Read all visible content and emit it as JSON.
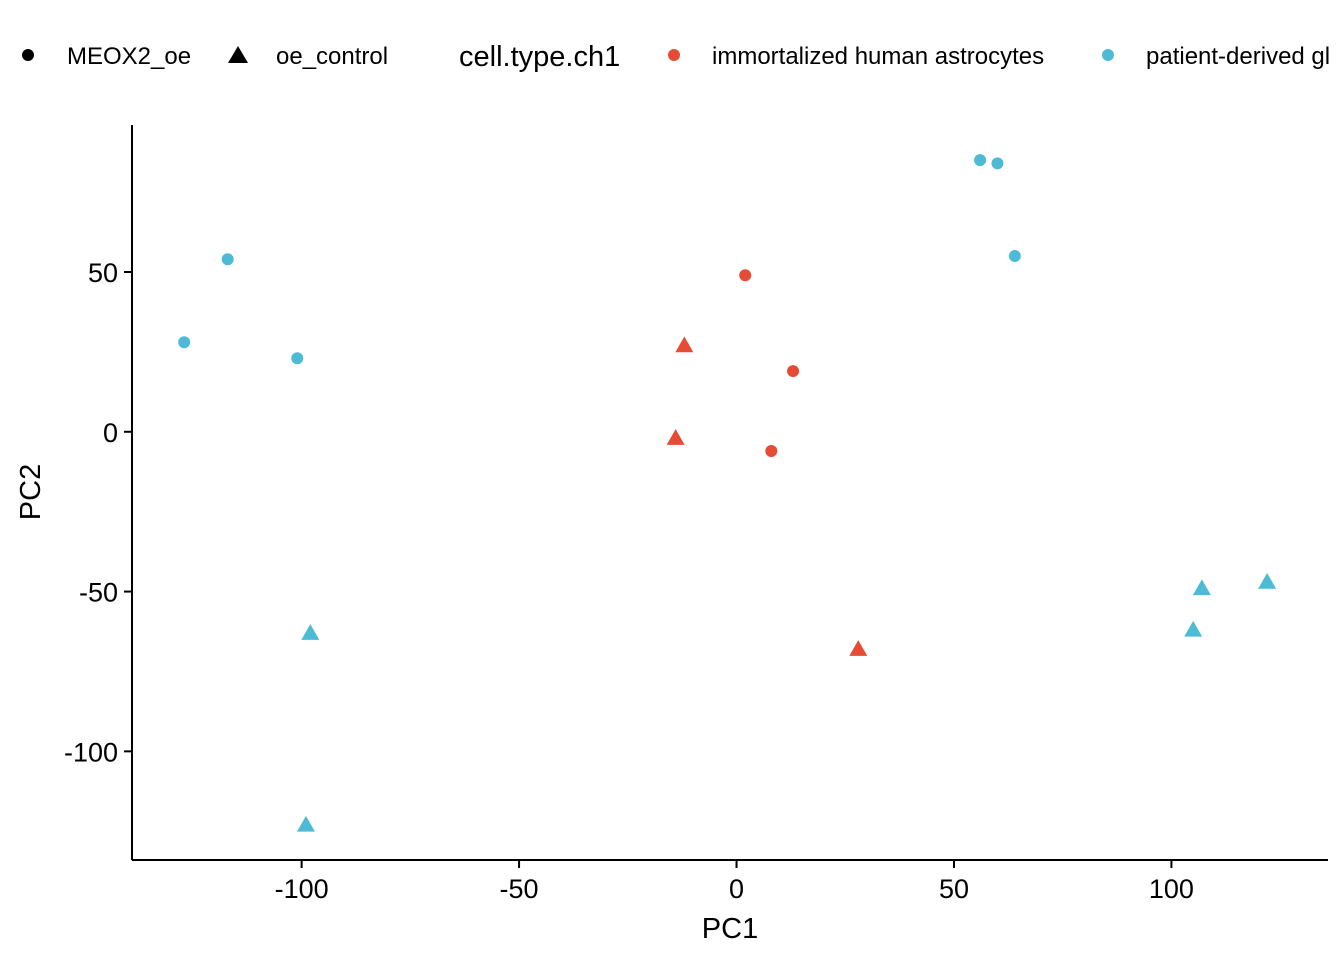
{
  "chart_data": {
    "type": "scatter",
    "xlabel": "PC1",
    "ylabel": "PC2",
    "xlim": [
      -139,
      136
    ],
    "ylim": [
      -134,
      96
    ],
    "x_ticks": [
      -100,
      -50,
      0,
      50,
      100
    ],
    "y_ticks": [
      50,
      0,
      -50,
      -100
    ],
    "x_tick_labels": [
      "-100",
      "-50",
      "0",
      "50",
      "100"
    ],
    "y_tick_labels": [
      "50",
      "0",
      "-50",
      "-100"
    ],
    "grid": false,
    "legend_position": "top",
    "shape_legend": [
      {
        "label": "MEOX2_oe",
        "shape": "circle"
      },
      {
        "label": "oe_control",
        "shape": "triangle"
      }
    ],
    "color_legend": {
      "title": "cell.type.ch1",
      "entries": [
        {
          "label": "immortalized human astrocytes",
          "color": "#E64B35"
        },
        {
          "label": "patient-derived gl",
          "color": "#4DBBD5"
        }
      ]
    },
    "points": [
      {
        "x": -127,
        "y": 28,
        "group": "patient-derived",
        "shape": "circle"
      },
      {
        "x": -117,
        "y": 54,
        "group": "patient-derived",
        "shape": "circle"
      },
      {
        "x": -101,
        "y": 23,
        "group": "patient-derived",
        "shape": "circle"
      },
      {
        "x": 56,
        "y": 85,
        "group": "patient-derived",
        "shape": "circle"
      },
      {
        "x": 60,
        "y": 84,
        "group": "patient-derived",
        "shape": "circle"
      },
      {
        "x": 64,
        "y": 55,
        "group": "patient-derived",
        "shape": "circle"
      },
      {
        "x": -98,
        "y": -63,
        "group": "patient-derived",
        "shape": "triangle"
      },
      {
        "x": -99,
        "y": -123,
        "group": "patient-derived",
        "shape": "triangle"
      },
      {
        "x": 105,
        "y": -62,
        "group": "patient-derived",
        "shape": "triangle"
      },
      {
        "x": 107,
        "y": -49,
        "group": "patient-derived",
        "shape": "triangle"
      },
      {
        "x": 122,
        "y": -47,
        "group": "patient-derived",
        "shape": "triangle"
      },
      {
        "x": 2,
        "y": 49,
        "group": "immortalized",
        "shape": "circle"
      },
      {
        "x": 13,
        "y": 19,
        "group": "immortalized",
        "shape": "circle"
      },
      {
        "x": 8,
        "y": -6,
        "group": "immortalized",
        "shape": "circle"
      },
      {
        "x": -12,
        "y": 27,
        "group": "immortalized",
        "shape": "triangle"
      },
      {
        "x": -14,
        "y": -2,
        "group": "immortalized",
        "shape": "triangle"
      },
      {
        "x": 28,
        "y": -68,
        "group": "immortalized",
        "shape": "triangle"
      }
    ],
    "colors": {
      "immortalized": "#E64B35",
      "patient-derived": "#4DBBD5",
      "legend_key": "#000000"
    }
  }
}
